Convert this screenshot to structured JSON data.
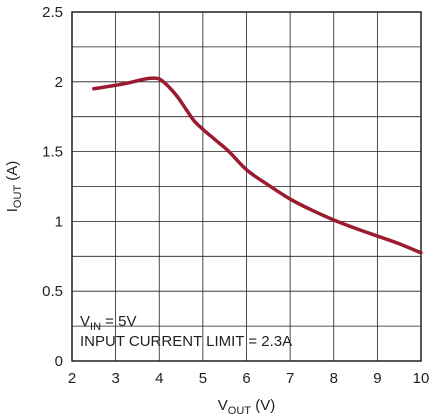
{
  "chart_data": {
    "type": "line",
    "xlabel": {
      "main": "V",
      "sub": "OUT",
      "unit": " (V)"
    },
    "ylabel": {
      "main": "I",
      "sub": "OUT",
      "unit": " (A)"
    },
    "xlim": [
      2,
      10
    ],
    "ylim": [
      0,
      2.5
    ],
    "x_ticks": [
      "2",
      "3",
      "4",
      "5",
      "6",
      "7",
      "8",
      "9",
      "10"
    ],
    "y_ticks": [
      "0",
      "0.5",
      "1",
      "1.5",
      "2",
      "2.5"
    ],
    "grid": true,
    "annotation": {
      "line1_main": "V",
      "line1_sub": "IN",
      "line1_rest": " = 5V",
      "line2": "INPUT CURRENT LIMIT = 2.3A"
    },
    "series": [
      {
        "color": "#9b1b30",
        "points": [
          [
            2.5,
            1.95
          ],
          [
            2.8,
            1.965
          ],
          [
            3.1,
            1.98
          ],
          [
            3.4,
            2.0
          ],
          [
            3.6,
            2.015
          ],
          [
            3.8,
            2.025
          ],
          [
            4.0,
            2.02
          ],
          [
            4.2,
            1.97
          ],
          [
            4.4,
            1.9
          ],
          [
            4.6,
            1.81
          ],
          [
            4.8,
            1.72
          ],
          [
            5.0,
            1.66
          ],
          [
            5.3,
            1.58
          ],
          [
            5.6,
            1.5
          ],
          [
            6.0,
            1.37
          ],
          [
            6.5,
            1.26
          ],
          [
            7.0,
            1.16
          ],
          [
            7.5,
            1.08
          ],
          [
            8.0,
            1.01
          ],
          [
            8.5,
            0.95
          ],
          [
            9.0,
            0.895
          ],
          [
            9.5,
            0.84
          ],
          [
            10.0,
            0.775
          ]
        ]
      }
    ]
  }
}
